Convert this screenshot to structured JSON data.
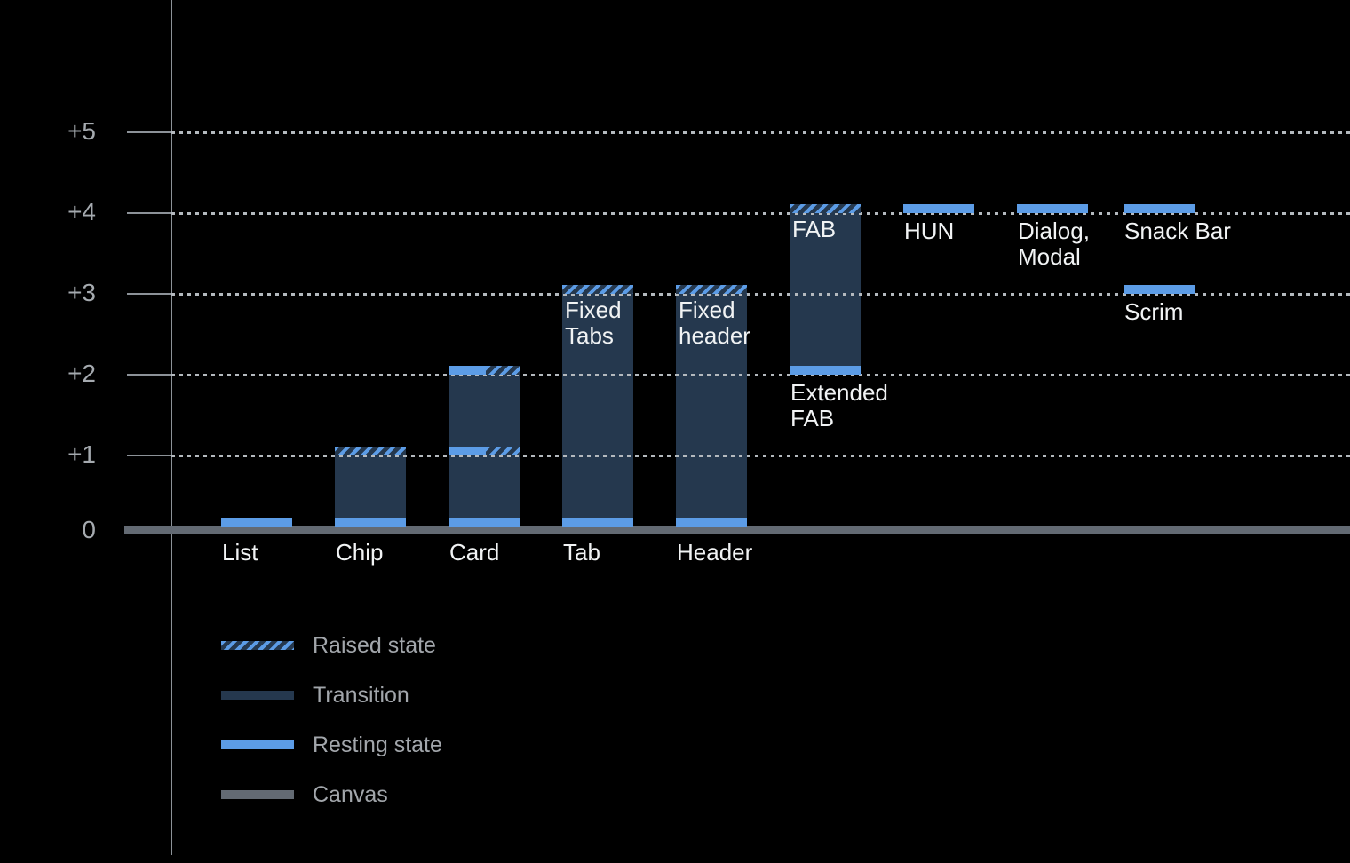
{
  "colors": {
    "background": "#000000",
    "resting": "#5C9CE6",
    "transition": "#25384E",
    "canvas": "#636A73",
    "grid_dots": "#B4B9BE",
    "axis": "#8C9298",
    "tick_label": "#A5AAAF",
    "bar_label": "#F1F3F4",
    "legend_label": "#A2A6AB"
  },
  "chart_data": {
    "type": "bar",
    "title": "",
    "xlabel": "",
    "ylabel": "",
    "ylim": [
      0,
      5
    ],
    "grid": "dotted horizontal gridlines at +1 through +5; solid canvas baseline at 0",
    "y_axis": {
      "ticks": [
        {
          "label": "+5",
          "level": 5
        },
        {
          "label": "+4",
          "level": 4
        },
        {
          "label": "+3",
          "level": 3
        },
        {
          "label": "+2",
          "level": 2
        },
        {
          "label": "+1",
          "level": 1
        },
        {
          "label": "0",
          "level": 0
        }
      ]
    },
    "bars": [
      {
        "name": "List",
        "col": 0,
        "label": "List",
        "label_at": "baseline",
        "segments": [
          {
            "type": "resting",
            "level": 0
          }
        ]
      },
      {
        "name": "Chip",
        "col": 1,
        "label": "Chip",
        "label_at": "baseline",
        "segments": [
          {
            "type": "resting",
            "level": 0
          },
          {
            "type": "transition",
            "from": 0,
            "to": 1
          },
          {
            "type": "raised",
            "level": 1
          }
        ]
      },
      {
        "name": "Card",
        "col": 2,
        "label": "Card",
        "label_at": "baseline",
        "segments": [
          {
            "type": "resting",
            "level": 0
          },
          {
            "type": "transition",
            "from": 0,
            "to": 1
          },
          {
            "type": "resting-raised",
            "level": 1
          },
          {
            "type": "transition",
            "from": 1,
            "to": 2
          },
          {
            "type": "resting-raised",
            "level": 2
          }
        ]
      },
      {
        "name": "Tab",
        "col": 3,
        "label": "Tab",
        "label_at": "baseline",
        "inner_label": "Fixed\nTabs",
        "segments": [
          {
            "type": "resting",
            "level": 0
          },
          {
            "type": "transition",
            "from": 0,
            "to": 3
          },
          {
            "type": "raised",
            "level": 3
          }
        ]
      },
      {
        "name": "Header",
        "col": 4,
        "label": "Header",
        "label_at": "baseline",
        "inner_label": "Fixed\nheader",
        "segments": [
          {
            "type": "resting",
            "level": 0
          },
          {
            "type": "transition",
            "from": 0,
            "to": 3
          },
          {
            "type": "raised",
            "level": 3
          }
        ]
      },
      {
        "name": "Extended FAB",
        "col": 5,
        "label": "Extended\nFAB",
        "label_at": "below-level",
        "label_level": 2,
        "inner_label": "FAB",
        "segments": [
          {
            "type": "resting",
            "level": 2
          },
          {
            "type": "transition",
            "from": 2,
            "to": 4
          },
          {
            "type": "raised",
            "level": 4
          }
        ]
      },
      {
        "name": "HUN",
        "col": 6,
        "label": "HUN",
        "label_at": "below-level",
        "label_level": 4,
        "segments": [
          {
            "type": "resting",
            "level": 4
          }
        ]
      },
      {
        "name": "Dialog, Modal",
        "col": 7,
        "label": "Dialog,\nModal",
        "label_at": "below-level",
        "label_level": 4,
        "segments": [
          {
            "type": "resting",
            "level": 4
          }
        ]
      },
      {
        "name": "Snack Bar",
        "col": 8,
        "label": "Snack Bar",
        "label_at": "below-level",
        "label_level": 4,
        "segments": [
          {
            "type": "resting",
            "level": 4
          }
        ]
      },
      {
        "name": "Scrim",
        "col": 8,
        "label": "Scrim",
        "label_at": "below-level",
        "label_level": 3,
        "segments": [
          {
            "type": "resting",
            "level": 3
          }
        ]
      }
    ],
    "legend": {
      "position": "bottom-left",
      "items": [
        {
          "label": "Raised state",
          "swatch": "raised"
        },
        {
          "label": "Transition",
          "swatch": "transition"
        },
        {
          "label": "Resting state",
          "swatch": "resting"
        },
        {
          "label": "Canvas",
          "swatch": "canvas"
        }
      ]
    }
  }
}
